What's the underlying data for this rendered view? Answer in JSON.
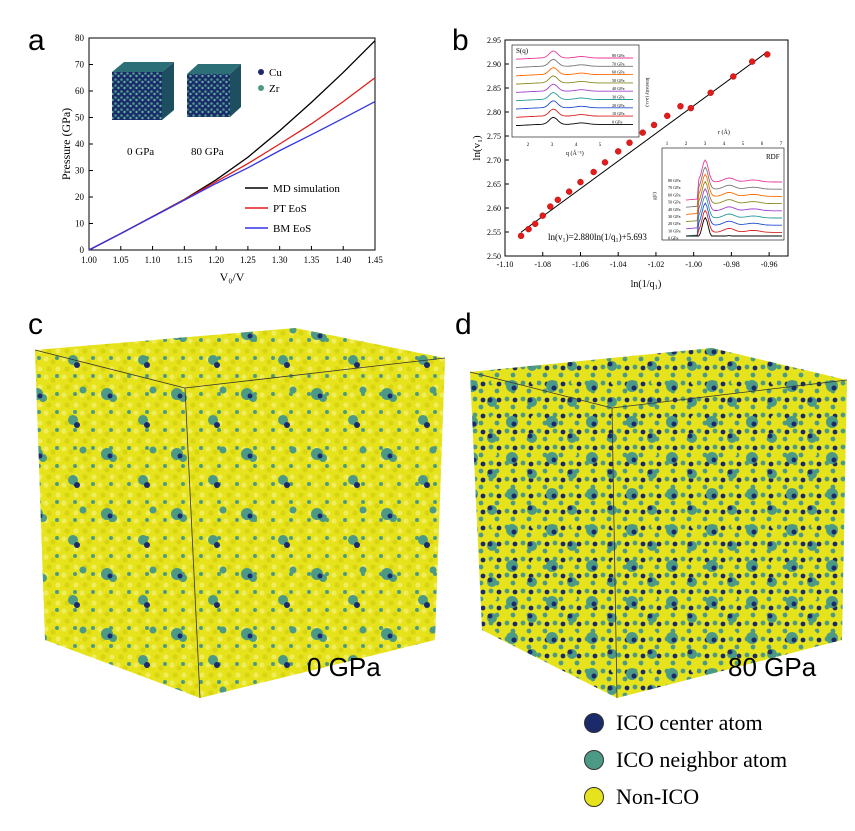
{
  "panels": {
    "a": "a",
    "b": "b",
    "c": "c",
    "d": "d"
  },
  "colors": {
    "cu": "#1b2a6b",
    "zr": "#4c9a86",
    "nonico": "#e6e21c",
    "md": "#000000",
    "pt": "#e01b1b",
    "bm": "#3434e6",
    "fit_point": "#e21b1b"
  },
  "chart_data": [
    {
      "type": "line",
      "ylabel": "Pressure (GPa)",
      "xlabel": "V₀/V",
      "xlim": [
        1.0,
        1.45
      ],
      "ylim": [
        0,
        80
      ],
      "xticks": [
        "1.00",
        "1.05",
        "1.10",
        "1.15",
        "1.20",
        "1.25",
        "1.30",
        "1.35",
        "1.40",
        "1.45"
      ],
      "yticks": [
        "0",
        "10",
        "20",
        "30",
        "40",
        "50",
        "60",
        "70",
        "80"
      ],
      "inset_labels": {
        "cu": "Cu",
        "zr": "Zr",
        "left_cube": "0 GPa",
        "right_cube": "80 GPa"
      },
      "legend_position": "bottom-right",
      "series": [
        {
          "name": "MD simulation",
          "color": "#000000",
          "x": [
            1.0,
            1.05,
            1.1,
            1.15,
            1.2,
            1.25,
            1.3,
            1.35,
            1.4,
            1.45
          ],
          "y": [
            0,
            6.2,
            12.6,
            19.1,
            26.5,
            35.0,
            45.0,
            55.7,
            67.0,
            79.0
          ]
        },
        {
          "name": "PT EoS",
          "color": "#e01b1b",
          "x": [
            1.0,
            1.05,
            1.1,
            1.15,
            1.2,
            1.25,
            1.3,
            1.35,
            1.4,
            1.45
          ],
          "y": [
            0,
            6.2,
            12.6,
            19.0,
            25.8,
            32.6,
            40.0,
            47.6,
            56.0,
            65.0
          ]
        },
        {
          "name": "BM EoS",
          "color": "#3434e6",
          "x": [
            1.0,
            1.05,
            1.1,
            1.15,
            1.2,
            1.25,
            1.3,
            1.35,
            1.4,
            1.45
          ],
          "y": [
            0,
            6.2,
            12.5,
            18.8,
            25.1,
            31.0,
            37.5,
            43.5,
            49.7,
            56.0
          ]
        }
      ]
    },
    {
      "type": "scatter",
      "ylabel": "ln(v₁)",
      "xlabel": "ln(1/q₁)",
      "xlim": [
        -1.1,
        -0.95
      ],
      "ylim": [
        2.5,
        2.95
      ],
      "xticks": [
        "-1.10",
        "-1.08",
        "-1.06",
        "-1.04",
        "-1.02",
        "-1.00",
        "-0.98",
        "-0.96"
      ],
      "yticks": [
        "2.50",
        "2.55",
        "2.60",
        "2.65",
        "2.70",
        "2.75",
        "2.80",
        "2.85",
        "2.90",
        "2.95"
      ],
      "fit_equation": "ln(v₁)=2.880ln(1/q₁)+5.693",
      "fit": {
        "slope": 2.88,
        "intercept": 5.693
      },
      "points": {
        "x": [
          -1.0915,
          -1.0875,
          -1.084,
          -1.08,
          -1.076,
          -1.072,
          -1.066,
          -1.06,
          -1.053,
          -1.047,
          -1.04,
          -1.034,
          -1.027,
          -1.021,
          -1.014,
          -1.007,
          -1.0015,
          -0.991,
          -0.979,
          -0.969,
          -0.961
        ],
        "y": [
          2.542,
          2.556,
          2.567,
          2.584,
          2.603,
          2.617,
          2.634,
          2.654,
          2.675,
          2.695,
          2.718,
          2.736,
          2.757,
          2.773,
          2.792,
          2.812,
          2.808,
          2.84,
          2.874,
          2.905,
          2.92
        ]
      },
      "inset_sq": {
        "title": "S(q)",
        "xlabel": "q (Å⁻¹)",
        "ylabel": "Intensity (a.u.)",
        "xticks": [
          "2",
          "3",
          "4",
          "5"
        ],
        "curve_labels": [
          "80 GPa",
          "70 GPa",
          "60 GPa",
          "50 GPa",
          "40 GPa",
          "30 GPa",
          "20 GPa",
          "10 GPa",
          "0 GPa"
        ]
      },
      "inset_rdf": {
        "title": "RDF",
        "xlabel": "r (Å)",
        "ylabel": "g(r)",
        "xticks": [
          "1",
          "2",
          "3",
          "4",
          "5",
          "6",
          "7"
        ],
        "curve_labels": [
          "80 GPa",
          "70 GPa",
          "60 GPa",
          "50 GPa",
          "40 GPa",
          "30 GPa",
          "20 GPa",
          "10 GPa",
          "0 GPa"
        ]
      },
      "curve_colors": [
        "#e83a9a",
        "#777777",
        "#ff6a00",
        "#8a8a20",
        "#a040d0",
        "#2a9a9a",
        "#2050d0",
        "#d82020",
        "#000000"
      ]
    }
  ],
  "cube_c_label": "0 GPa",
  "cube_d_label": "80 GPa",
  "legend": [
    {
      "label": "ICO center atom",
      "color": "#1b2a6b"
    },
    {
      "label": "ICO neighbor atom",
      "color": "#4c9a86"
    },
    {
      "label": "Non-ICO",
      "color": "#e6e21c"
    }
  ]
}
